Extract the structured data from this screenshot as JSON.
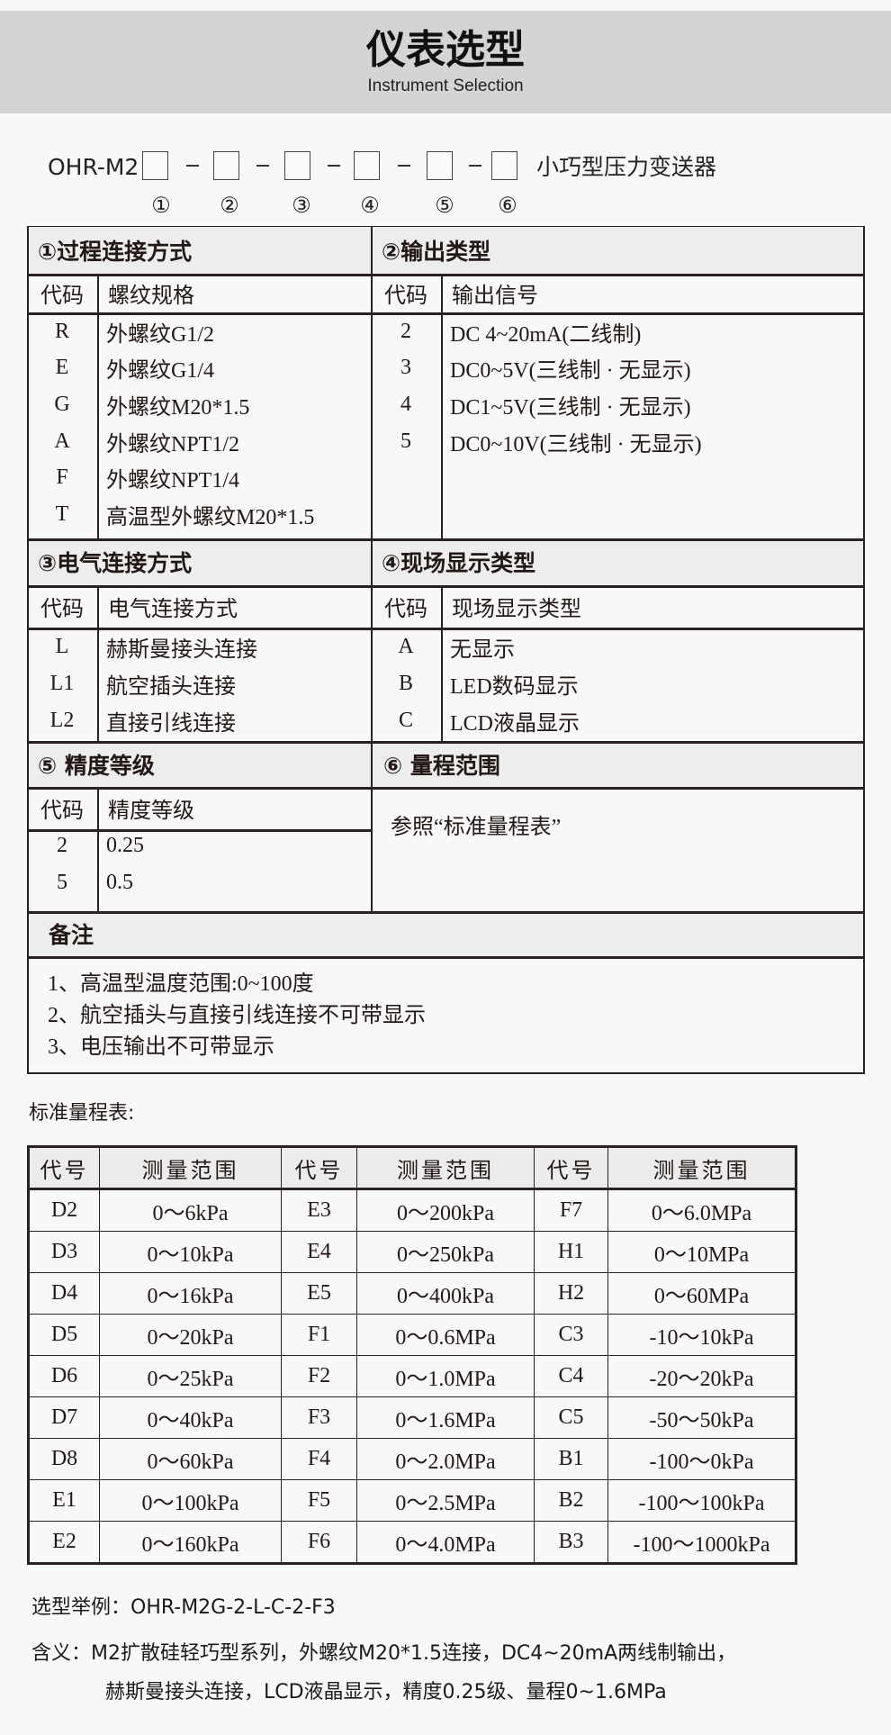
{
  "header": {
    "title": "仪表选型",
    "subtitle": "Instrument Selection"
  },
  "model": {
    "prefix": "OHR-M2",
    "separator": "-",
    "suffix": "小巧型压力变送器",
    "markers": [
      "①",
      "②",
      "③",
      "④",
      "⑤",
      "⑥"
    ]
  },
  "sections": {
    "s1": {
      "title": "①过程连接方式",
      "col_code": "代码",
      "col_desc": "螺纹规格",
      "rows": [
        {
          "code": "R",
          "desc": "外螺纹G1/2"
        },
        {
          "code": "E",
          "desc": "外螺纹G1/4"
        },
        {
          "code": "G",
          "desc": "外螺纹M20*1.5"
        },
        {
          "code": "A",
          "desc": "外螺纹NPT1/2"
        },
        {
          "code": "F",
          "desc": "外螺纹NPT1/4"
        },
        {
          "code": "T",
          "desc": "高温型外螺纹M20*1.5"
        }
      ]
    },
    "s2": {
      "title": "②输出类型",
      "col_code": "代码",
      "col_desc": "输出信号",
      "rows": [
        {
          "code": "2",
          "desc": "DC 4~20mA(二线制)"
        },
        {
          "code": "3",
          "desc": "DC0~5V(三线制 · 无显示)"
        },
        {
          "code": "4",
          "desc": "DC1~5V(三线制 · 无显示)"
        },
        {
          "code": "5",
          "desc": "DC0~10V(三线制 · 无显示)"
        }
      ]
    },
    "s3": {
      "title": "③电气连接方式",
      "col_code": "代码",
      "col_desc": "电气连接方式",
      "rows": [
        {
          "code": "L",
          "desc": "赫斯曼接头连接"
        },
        {
          "code": "L1",
          "desc": "航空插头连接"
        },
        {
          "code": "L2",
          "desc": "直接引线连接"
        }
      ]
    },
    "s4": {
      "title": "④现场显示类型",
      "col_code": "代码",
      "col_desc": "现场显示类型",
      "rows": [
        {
          "code": "A",
          "desc": "无显示"
        },
        {
          "code": "B",
          "desc": "LED数码显示"
        },
        {
          "code": "C",
          "desc": "LCD液晶显示"
        }
      ]
    },
    "s5": {
      "title": "⑤ 精度等级",
      "col_code": "代码",
      "col_desc": "精度等级",
      "rows": [
        {
          "code": "2",
          "desc": "0.25"
        },
        {
          "code": "5",
          "desc": "0.5"
        }
      ]
    },
    "s6": {
      "title": "⑥ 量程范围",
      "text": "参照“标准量程表”"
    },
    "notes": {
      "title": "备注",
      "lines": [
        "1、高温型温度范围:0~100度",
        "2、航空插头与直接引线连接不可带显示",
        "3、电压输出不可带显示"
      ]
    }
  },
  "range_table": {
    "label": "标准量程表:",
    "headers": [
      "代号",
      "测量范围",
      "代号",
      "测量范围",
      "代号",
      "测量范围"
    ],
    "rows": [
      [
        "D2",
        "0～6kPa",
        "E3",
        "0～200kPa",
        "F7",
        "0～6.0MPa"
      ],
      [
        "D3",
        "0～10kPa",
        "E4",
        "0～250kPa",
        "H1",
        "0～10MPa"
      ],
      [
        "D4",
        "0～16kPa",
        "E5",
        "0～400kPa",
        "H2",
        "0～60MPa"
      ],
      [
        "D5",
        "0～20kPa",
        "F1",
        "0～0.6MPa",
        "C3",
        "-10～10kPa"
      ],
      [
        "D6",
        "0～25kPa",
        "F2",
        "0～1.0MPa",
        "C4",
        "-20～20kPa"
      ],
      [
        "D7",
        "0～40kPa",
        "F3",
        "0～1.6MPa",
        "C5",
        "-50～50kPa"
      ],
      [
        "D8",
        "0～60kPa",
        "F4",
        "0～2.0MPa",
        "B1",
        "-100～0kPa"
      ],
      [
        "E1",
        "0～100kPa",
        "F5",
        "0～2.5MPa",
        "B2",
        "-100～100kPa"
      ],
      [
        "E2",
        "0～160kPa",
        "F6",
        "0～4.0MPa",
        "B3",
        "-100～1000kPa"
      ]
    ]
  },
  "example": {
    "line1": "选型举例：OHR-M2G-2-L-C-2-F3",
    "line2": "含义：M2扩散硅轻巧型系列，外螺纹M20*1.5连接，DC4~20mA两线制输出，",
    "line3": "赫斯曼接头连接，LCD液晶显示，精度0.25级、量程0~1.6MPa"
  }
}
